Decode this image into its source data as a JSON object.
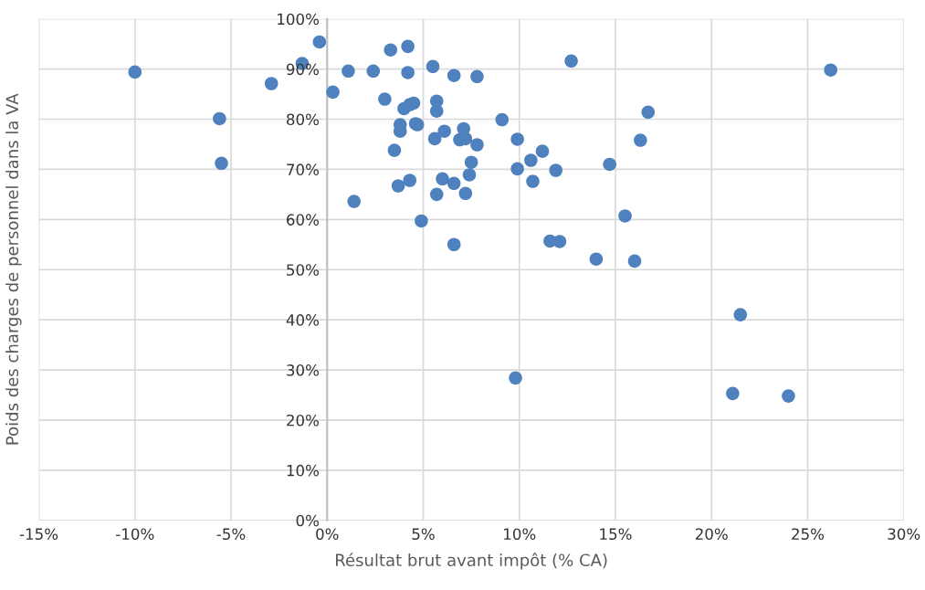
{
  "chart_data": {
    "type": "scatter",
    "xlabel": "Résultat brut avant impôt (% CA)",
    "ylabel": "Poids des charges de personnel dans la VA",
    "x": [
      -10.0,
      -5.6,
      -5.5,
      -2.9,
      -1.3,
      -0.4,
      0.3,
      1.1,
      1.4,
      2.4,
      3.0,
      3.3,
      3.5,
      3.7,
      3.8,
      3.8,
      4.0,
      4.2,
      4.2,
      4.3,
      4.3,
      4.5,
      4.6,
      4.7,
      4.9,
      5.5,
      5.6,
      5.7,
      5.7,
      5.7,
      6.1,
      6.0,
      6.6,
      6.6,
      6.6,
      6.9,
      7.1,
      7.2,
      7.2,
      7.4,
      7.5,
      7.8,
      7.8,
      9.1,
      9.9,
      9.9,
      9.8,
      10.6,
      10.7,
      11.2,
      11.9,
      11.6,
      12.1,
      12.7,
      14.0,
      14.7,
      15.5,
      16.0,
      16.3,
      16.7,
      21.1,
      21.5,
      24.0,
      26.2
    ],
    "values": [
      89.4,
      80.1,
      71.2,
      87.1,
      91.1,
      95.4,
      85.4,
      89.6,
      63.6,
      89.6,
      84.0,
      93.8,
      73.8,
      66.7,
      78.9,
      77.6,
      82.1,
      94.5,
      89.3,
      82.9,
      67.8,
      83.2,
      79.1,
      78.9,
      59.7,
      90.5,
      76.1,
      81.6,
      83.6,
      65.0,
      77.6,
      68.1,
      88.7,
      67.2,
      55.0,
      75.9,
      78.1,
      76.1,
      65.2,
      68.9,
      71.4,
      88.5,
      74.9,
      79.9,
      76.0,
      70.1,
      28.4,
      71.8,
      67.6,
      73.6,
      69.8,
      55.7,
      55.6,
      91.6,
      52.1,
      71.0,
      60.7,
      51.7,
      75.8,
      81.4,
      25.3,
      41.0,
      24.8,
      89.8
    ],
    "color": "#4e81bd",
    "marker": "circle",
    "grid": true,
    "xlim": [
      -15,
      30
    ],
    "xticks": [
      {
        "value": -15,
        "label": "-15%"
      },
      {
        "value": -10,
        "label": "-10%"
      },
      {
        "value": -5,
        "label": "-5%"
      },
      {
        "value": 0,
        "label": "0%"
      },
      {
        "value": 5,
        "label": "5%"
      },
      {
        "value": 10,
        "label": "10%"
      },
      {
        "value": 15,
        "label": "15%"
      },
      {
        "value": 20,
        "label": "20%"
      },
      {
        "value": 25,
        "label": "25%"
      },
      {
        "value": 30,
        "label": "30%"
      }
    ],
    "ylim": [
      0,
      100
    ],
    "yticks": [
      {
        "value": 0,
        "label": "0%"
      },
      {
        "value": 10,
        "label": "10%"
      },
      {
        "value": 20,
        "label": "20%"
      },
      {
        "value": 30,
        "label": "30%"
      },
      {
        "value": 40,
        "label": "40%"
      },
      {
        "value": 50,
        "label": "50%"
      },
      {
        "value": 60,
        "label": "60%"
      },
      {
        "value": 70,
        "label": "70%"
      },
      {
        "value": 80,
        "label": "80%"
      },
      {
        "value": 90,
        "label": "90%"
      },
      {
        "value": 100,
        "label": "100%"
      }
    ]
  }
}
